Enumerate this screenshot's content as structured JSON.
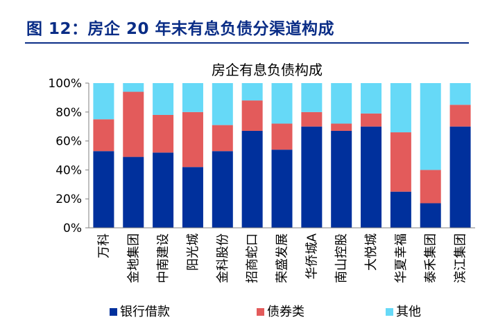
{
  "figure_title": "图 12：房企 20 年末有息负债分渠道构成",
  "colors": {
    "title": "#0a2d86",
    "bank": "#00309c",
    "bond": "#e35b5b",
    "other": "#66d9f7"
  },
  "chart_data": {
    "type": "bar",
    "stacked": true,
    "title": "房企有息负债构成",
    "categories": [
      "万科",
      "金地集团",
      "中南建设",
      "阳光城",
      "金科股份",
      "招商蛇口",
      "荣盛发展",
      "华侨城A",
      "南山控股",
      "大悦城",
      "华夏幸福",
      "泰禾集团",
      "滨江集团"
    ],
    "series": [
      {
        "name": "银行借款",
        "values": [
          53,
          49,
          52,
          42,
          53,
          67,
          54,
          70,
          67,
          70,
          25,
          17,
          70
        ]
      },
      {
        "name": "债券类",
        "values": [
          22,
          45,
          26,
          38,
          18,
          21,
          18,
          10,
          5,
          9,
          41,
          23,
          15
        ]
      },
      {
        "name": "其他",
        "values": [
          25,
          6,
          22,
          20,
          29,
          12,
          28,
          20,
          28,
          21,
          34,
          60,
          15
        ]
      }
    ],
    "y_ticks": [
      "0%",
      "20%",
      "40%",
      "60%",
      "80%",
      "100%"
    ],
    "ylim": [
      0,
      100
    ],
    "legend_position": "bottom"
  }
}
